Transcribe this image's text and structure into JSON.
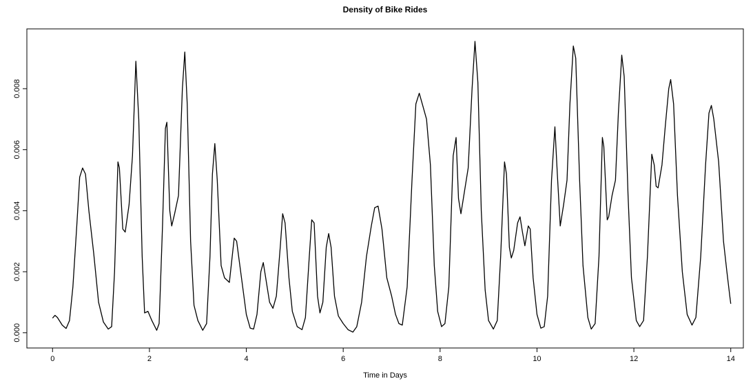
{
  "chart_data": {
    "type": "line",
    "title": "Density of Bike Rides",
    "x_label": "Time in Days",
    "x": [
      0.0,
      0.05,
      0.1,
      0.2,
      0.28,
      0.35,
      0.42,
      0.5,
      0.56,
      0.62,
      0.68,
      0.75,
      0.85,
      0.95,
      1.05,
      1.15,
      1.22,
      1.28,
      1.35,
      1.38,
      1.45,
      1.5,
      1.58,
      1.65,
      1.72,
      1.78,
      1.85,
      1.9,
      1.97,
      2.05,
      2.15,
      2.2,
      2.27,
      2.33,
      2.36,
      2.42,
      2.46,
      2.52,
      2.6,
      2.68,
      2.73,
      2.78,
      2.85,
      2.92,
      3.0,
      3.1,
      3.18,
      3.25,
      3.3,
      3.35,
      3.4,
      3.48,
      3.55,
      3.65,
      3.75,
      3.8,
      3.9,
      4.0,
      4.08,
      4.15,
      4.22,
      4.3,
      4.35,
      4.4,
      4.48,
      4.55,
      4.62,
      4.7,
      4.75,
      4.8,
      4.88,
      4.95,
      5.05,
      5.15,
      5.22,
      5.3,
      5.35,
      5.4,
      5.47,
      5.52,
      5.58,
      5.65,
      5.7,
      5.75,
      5.82,
      5.9,
      6.0,
      6.1,
      6.2,
      6.28,
      6.38,
      6.48,
      6.58,
      6.65,
      6.72,
      6.8,
      6.9,
      7.0,
      7.08,
      7.15,
      7.22,
      7.32,
      7.42,
      7.5,
      7.57,
      7.65,
      7.72,
      7.8,
      7.88,
      7.95,
      8.03,
      8.1,
      8.18,
      8.27,
      8.33,
      8.38,
      8.43,
      8.5,
      8.58,
      8.66,
      8.72,
      8.78,
      8.85,
      8.93,
      9.0,
      9.1,
      9.18,
      9.25,
      9.33,
      9.37,
      9.43,
      9.47,
      9.52,
      9.6,
      9.65,
      9.7,
      9.75,
      9.82,
      9.86,
      9.92,
      10.0,
      10.08,
      10.15,
      10.22,
      10.3,
      10.37,
      10.42,
      10.48,
      10.55,
      10.62,
      10.68,
      10.75,
      10.8,
      10.88,
      10.95,
      11.05,
      11.12,
      11.2,
      11.28,
      11.35,
      11.38,
      11.45,
      11.48,
      11.55,
      11.62,
      11.68,
      11.75,
      11.8,
      11.88,
      11.95,
      12.05,
      12.12,
      12.2,
      12.28,
      12.37,
      12.42,
      12.46,
      12.5,
      12.58,
      12.65,
      12.72,
      12.76,
      12.82,
      12.9,
      13.0,
      13.1,
      13.2,
      13.28,
      13.38,
      13.48,
      13.55,
      13.6,
      13.65,
      13.75,
      13.85,
      13.92,
      13.98,
      14.0
    ],
    "values": [
      0.00048,
      0.00057,
      0.0005,
      0.00025,
      0.00014,
      0.0004,
      0.0015,
      0.0035,
      0.0051,
      0.0054,
      0.0052,
      0.004,
      0.0026,
      0.001,
      0.00035,
      0.00012,
      0.0002,
      0.002,
      0.0056,
      0.0054,
      0.0034,
      0.0033,
      0.0042,
      0.0058,
      0.0089,
      0.007,
      0.0025,
      0.00065,
      0.0007,
      0.0004,
      8e-05,
      0.0003,
      0.0035,
      0.0067,
      0.0069,
      0.004,
      0.0035,
      0.0039,
      0.0045,
      0.008,
      0.0092,
      0.0075,
      0.003,
      0.0009,
      0.0004,
      8e-05,
      0.0003,
      0.0025,
      0.0052,
      0.0062,
      0.005,
      0.0022,
      0.0018,
      0.00165,
      0.0031,
      0.003,
      0.0018,
      0.0006,
      0.00015,
      0.00012,
      0.0006,
      0.002,
      0.0023,
      0.0018,
      0.001,
      0.0008,
      0.0012,
      0.0028,
      0.0039,
      0.0036,
      0.0018,
      0.0007,
      0.0002,
      0.0001,
      0.0005,
      0.0025,
      0.0037,
      0.0036,
      0.0012,
      0.00065,
      0.001,
      0.0028,
      0.00325,
      0.0028,
      0.0012,
      0.00055,
      0.0003,
      0.0001,
      2e-05,
      0.0002,
      0.001,
      0.0025,
      0.0035,
      0.0041,
      0.00415,
      0.0034,
      0.0018,
      0.0012,
      0.0006,
      0.0003,
      0.00025,
      0.0015,
      0.005,
      0.0075,
      0.00785,
      0.0074,
      0.007,
      0.0055,
      0.0022,
      0.0007,
      0.0002,
      0.0003,
      0.0015,
      0.0058,
      0.0064,
      0.0044,
      0.0039,
      0.0046,
      0.0054,
      0.008,
      0.00955,
      0.0082,
      0.004,
      0.0014,
      0.0004,
      0.00012,
      0.0004,
      0.0025,
      0.0056,
      0.0052,
      0.0028,
      0.00245,
      0.0027,
      0.0036,
      0.0038,
      0.0033,
      0.00285,
      0.0035,
      0.0034,
      0.0018,
      0.0006,
      0.00015,
      0.0002,
      0.0012,
      0.005,
      0.00675,
      0.0052,
      0.0035,
      0.0042,
      0.005,
      0.0075,
      0.0094,
      0.009,
      0.005,
      0.0022,
      0.0005,
      0.00012,
      0.0003,
      0.0025,
      0.0064,
      0.0061,
      0.0037,
      0.0038,
      0.0045,
      0.005,
      0.0072,
      0.0091,
      0.0084,
      0.0045,
      0.0018,
      0.0004,
      0.0002,
      0.0004,
      0.0025,
      0.00585,
      0.0055,
      0.0048,
      0.00475,
      0.0055,
      0.0068,
      0.008,
      0.0083,
      0.0075,
      0.0045,
      0.002,
      0.0006,
      0.00025,
      0.0005,
      0.0025,
      0.0055,
      0.0072,
      0.00745,
      0.007,
      0.0056,
      0.003,
      0.002,
      0.0012,
      0.00095
    ],
    "color": "#000000",
    "xlim": [
      -0.53,
      14.26
    ],
    "ylim": [
      -0.0005,
      0.00996
    ],
    "xticks": [
      0,
      2,
      4,
      6,
      8,
      10,
      12,
      14
    ],
    "yticks": [
      {
        "value": 0,
        "label": "0.000"
      },
      0.002,
      0.004,
      0.006,
      0.008
    ]
  }
}
